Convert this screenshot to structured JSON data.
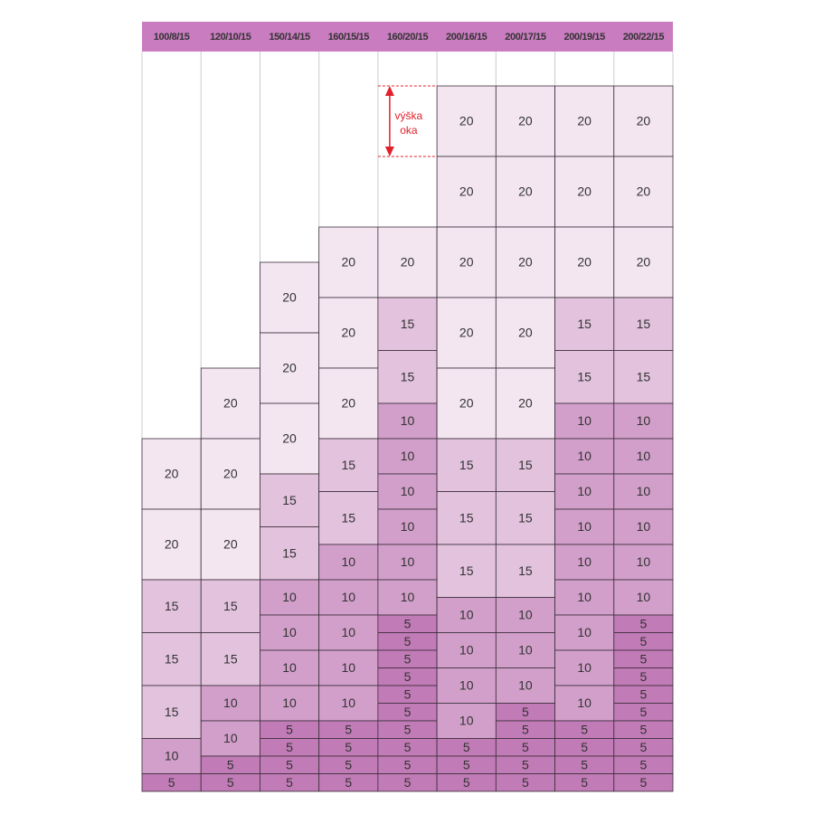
{
  "columns": [
    {
      "header": "100/8/15",
      "cells": [
        20,
        20,
        15,
        15,
        15,
        10,
        5
      ]
    },
    {
      "header": "120/10/15",
      "cells": [
        20,
        20,
        20,
        15,
        15,
        10,
        10,
        5,
        5
      ]
    },
    {
      "header": "150/14/15",
      "cells": [
        20,
        20,
        20,
        15,
        15,
        10,
        10,
        10,
        10,
        5,
        5,
        5,
        5
      ]
    },
    {
      "header": "160/15/15",
      "cells": [
        20,
        20,
        20,
        15,
        15,
        10,
        10,
        10,
        10,
        10,
        5,
        5,
        5,
        5
      ]
    },
    {
      "header": "160/20/15",
      "cells": [
        20,
        15,
        15,
        10,
        10,
        10,
        10,
        10,
        10,
        5,
        5,
        5,
        5,
        5,
        5,
        5,
        5,
        5,
        5
      ]
    },
    {
      "header": "200/16/15",
      "cells": [
        20,
        20,
        20,
        20,
        20,
        15,
        15,
        15,
        10,
        10,
        10,
        10,
        5,
        5,
        5
      ]
    },
    {
      "header": "200/17/15",
      "cells": [
        20,
        20,
        20,
        20,
        20,
        15,
        15,
        15,
        10,
        10,
        10,
        5,
        5,
        5,
        5,
        5
      ]
    },
    {
      "header": "200/19/15",
      "cells": [
        20,
        20,
        20,
        15,
        15,
        10,
        10,
        10,
        10,
        10,
        10,
        10,
        10,
        10,
        5,
        5,
        5,
        5
      ]
    },
    {
      "header": "200/22/15",
      "cells": [
        20,
        20,
        20,
        15,
        15,
        10,
        10,
        10,
        10,
        10,
        10,
        5,
        5,
        5,
        5,
        5,
        5,
        5,
        5,
        5,
        5
      ]
    }
  ],
  "annotation": [
    "výška",
    "oka"
  ]
}
